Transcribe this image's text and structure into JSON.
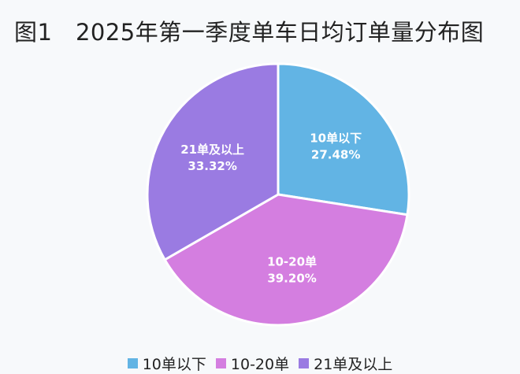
{
  "chart_data": {
    "type": "pie",
    "title": "图1　2025年第一季度单车日均订单量分布图",
    "categories": [
      "10单以下",
      "10-20单",
      "21单及以上"
    ],
    "values": [
      27.48,
      39.2,
      33.32
    ],
    "labels": [
      "27.48%",
      "39.20%",
      "33.32%"
    ],
    "colors": [
      "#62b4e4",
      "#d47ee0",
      "#9a7be2"
    ],
    "legend_position": "bottom"
  }
}
